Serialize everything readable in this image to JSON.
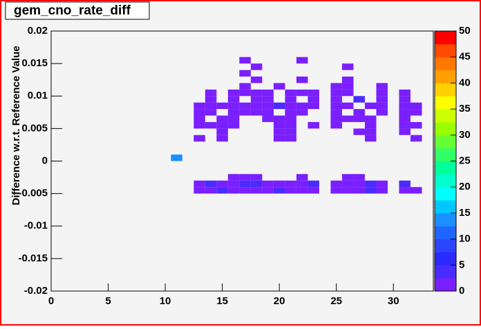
{
  "chart_data": {
    "type": "heatmap",
    "title": "gem_cno_rate_diff",
    "y_label": "Difference w.r.t. Reference Value",
    "xlim": [
      0,
      33.5
    ],
    "xticks": [
      0,
      5,
      10,
      15,
      20,
      25,
      30
    ],
    "ylim": [
      -0.02,
      0.02
    ],
    "yticks": [
      -0.02,
      -0.015,
      -0.01,
      -0.005,
      0,
      0.005,
      0.01,
      0.015,
      0.02
    ],
    "xbin_width": 1,
    "ybin_width": 0.001,
    "zlim": [
      0,
      50
    ],
    "zticks": [
      0,
      5,
      10,
      15,
      20,
      25,
      30,
      35,
      40,
      45,
      50
    ],
    "palette": [
      "#7a1fff",
      "#4a2bff",
      "#2a2aff",
      "#2a44ff",
      "#1f66ff",
      "#1a90ff",
      "#00c8ff",
      "#00ffff",
      "#00ffcc",
      "#00ff99",
      "#33ff66",
      "#66ff33",
      "#99ff00",
      "#ccff00",
      "#ffff00",
      "#ffd000",
      "#ffa000",
      "#ff7800",
      "#ff4a00",
      "#ff0000"
    ],
    "cells": [
      [
        17,
        0.0155,
        1
      ],
      [
        22,
        0.0155,
        1
      ],
      [
        18,
        0.0145,
        1
      ],
      [
        26,
        0.0145,
        1
      ],
      [
        17,
        0.0135,
        1
      ],
      [
        18,
        0.0125,
        1
      ],
      [
        22,
        0.0125,
        1
      ],
      [
        26,
        0.0125,
        1
      ],
      [
        17,
        0.0115,
        1
      ],
      [
        20,
        0.0115,
        1
      ],
      [
        25,
        0.0115,
        1
      ],
      [
        26,
        0.0115,
        1
      ],
      [
        29,
        0.0115,
        1
      ],
      [
        14,
        0.0105,
        1
      ],
      [
        16,
        0.0105,
        1
      ],
      [
        17,
        0.0105,
        1
      ],
      [
        18,
        0.0105,
        1
      ],
      [
        19,
        0.0105,
        1
      ],
      [
        21,
        0.0105,
        1
      ],
      [
        22,
        0.0105,
        1
      ],
      [
        23,
        0.0105,
        1
      ],
      [
        25,
        0.0105,
        1
      ],
      [
        26,
        0.0105,
        1
      ],
      [
        29,
        0.0105,
        1
      ],
      [
        31,
        0.0105,
        1
      ],
      [
        14,
        0.0095,
        1
      ],
      [
        16,
        0.0095,
        1
      ],
      [
        18,
        0.0095,
        1
      ],
      [
        19,
        0.0095,
        1
      ],
      [
        21,
        0.0095,
        1
      ],
      [
        23,
        0.0095,
        1
      ],
      [
        25,
        0.0095,
        1
      ],
      [
        27,
        0.0095,
        3
      ],
      [
        29,
        0.0095,
        1
      ],
      [
        31,
        0.0095,
        1
      ],
      [
        13,
        0.0085,
        1
      ],
      [
        14,
        0.0085,
        1
      ],
      [
        15,
        0.0085,
        1
      ],
      [
        16,
        0.0085,
        1
      ],
      [
        17,
        0.0085,
        1
      ],
      [
        18,
        0.0085,
        1
      ],
      [
        19,
        0.0085,
        1
      ],
      [
        20,
        0.0085,
        3
      ],
      [
        21,
        0.0085,
        1
      ],
      [
        22,
        0.0085,
        1
      ],
      [
        23,
        0.0085,
        1
      ],
      [
        25,
        0.0085,
        1
      ],
      [
        26,
        0.0085,
        1
      ],
      [
        28,
        0.0085,
        1
      ],
      [
        29,
        0.0085,
        1
      ],
      [
        31,
        0.0085,
        1
      ],
      [
        32,
        0.0085,
        1
      ],
      [
        13,
        0.0075,
        1
      ],
      [
        14,
        0.0075,
        1
      ],
      [
        16,
        0.0075,
        1
      ],
      [
        17,
        0.0075,
        1
      ],
      [
        18,
        0.0075,
        1
      ],
      [
        19,
        0.0075,
        1
      ],
      [
        21,
        0.0075,
        1
      ],
      [
        22,
        0.0075,
        1
      ],
      [
        25,
        0.0075,
        1
      ],
      [
        27,
        0.0075,
        1
      ],
      [
        29,
        0.0075,
        1
      ],
      [
        31,
        0.0075,
        1
      ],
      [
        32,
        0.0075,
        1
      ],
      [
        13,
        0.0065,
        1
      ],
      [
        15,
        0.0065,
        1
      ],
      [
        16,
        0.0065,
        1
      ],
      [
        19,
        0.0065,
        1
      ],
      [
        20,
        0.0065,
        1
      ],
      [
        21,
        0.0065,
        1
      ],
      [
        25,
        0.0065,
        1
      ],
      [
        26,
        0.0065,
        1
      ],
      [
        27,
        0.0065,
        1
      ],
      [
        28,
        0.0065,
        1
      ],
      [
        31,
        0.0065,
        1
      ],
      [
        13,
        0.0055,
        1
      ],
      [
        14,
        0.0055,
        1
      ],
      [
        15,
        0.0055,
        1
      ],
      [
        16,
        0.0055,
        1
      ],
      [
        20,
        0.0055,
        1
      ],
      [
        21,
        0.0055,
        1
      ],
      [
        23,
        0.0055,
        1
      ],
      [
        25,
        0.0055,
        1
      ],
      [
        28,
        0.0055,
        1
      ],
      [
        31,
        0.0055,
        1
      ],
      [
        32,
        0.0055,
        1
      ],
      [
        15,
        0.0045,
        1
      ],
      [
        20,
        0.0045,
        1
      ],
      [
        21,
        0.0045,
        1
      ],
      [
        27,
        0.0045,
        1
      ],
      [
        28,
        0.0045,
        1
      ],
      [
        31,
        0.0045,
        1
      ],
      [
        13,
        0.0035,
        1
      ],
      [
        15,
        0.0035,
        1
      ],
      [
        20,
        0.0035,
        1
      ],
      [
        21,
        0.0035,
        1
      ],
      [
        28,
        0.0035,
        1
      ],
      [
        32,
        0.0035,
        1
      ],
      [
        11,
        0.0005,
        13
      ],
      [
        16,
        -0.0025,
        1
      ],
      [
        17,
        -0.0025,
        1
      ],
      [
        18,
        -0.0025,
        1
      ],
      [
        22,
        -0.0025,
        1
      ],
      [
        26,
        -0.0025,
        1
      ],
      [
        27,
        -0.0025,
        1
      ],
      [
        13,
        -0.0035,
        1
      ],
      [
        14,
        -0.0035,
        3
      ],
      [
        15,
        -0.0035,
        1
      ],
      [
        16,
        -0.0035,
        1
      ],
      [
        17,
        -0.0035,
        3
      ],
      [
        18,
        -0.0035,
        3
      ],
      [
        19,
        -0.0035,
        1
      ],
      [
        20,
        -0.0035,
        1
      ],
      [
        21,
        -0.0035,
        1
      ],
      [
        22,
        -0.0035,
        1
      ],
      [
        23,
        -0.0035,
        3
      ],
      [
        25,
        -0.0035,
        1
      ],
      [
        26,
        -0.0035,
        1
      ],
      [
        27,
        -0.0035,
        1
      ],
      [
        28,
        -0.0035,
        3
      ],
      [
        29,
        -0.0035,
        1
      ],
      [
        31,
        -0.0035,
        3
      ],
      [
        13,
        -0.0045,
        1
      ],
      [
        14,
        -0.0045,
        1
      ],
      [
        15,
        -0.0045,
        3
      ],
      [
        16,
        -0.0045,
        1
      ],
      [
        17,
        -0.0045,
        1
      ],
      [
        18,
        -0.0045,
        1
      ],
      [
        19,
        -0.0045,
        1
      ],
      [
        20,
        -0.0045,
        3
      ],
      [
        21,
        -0.0045,
        1
      ],
      [
        22,
        -0.0045,
        1
      ],
      [
        23,
        -0.0045,
        1
      ],
      [
        25,
        -0.0045,
        1
      ],
      [
        26,
        -0.0045,
        1
      ],
      [
        27,
        -0.0045,
        1
      ],
      [
        28,
        -0.0045,
        3
      ],
      [
        29,
        -0.0045,
        1
      ],
      [
        31,
        -0.0045,
        1
      ],
      [
        32,
        -0.0045,
        1
      ]
    ]
  }
}
